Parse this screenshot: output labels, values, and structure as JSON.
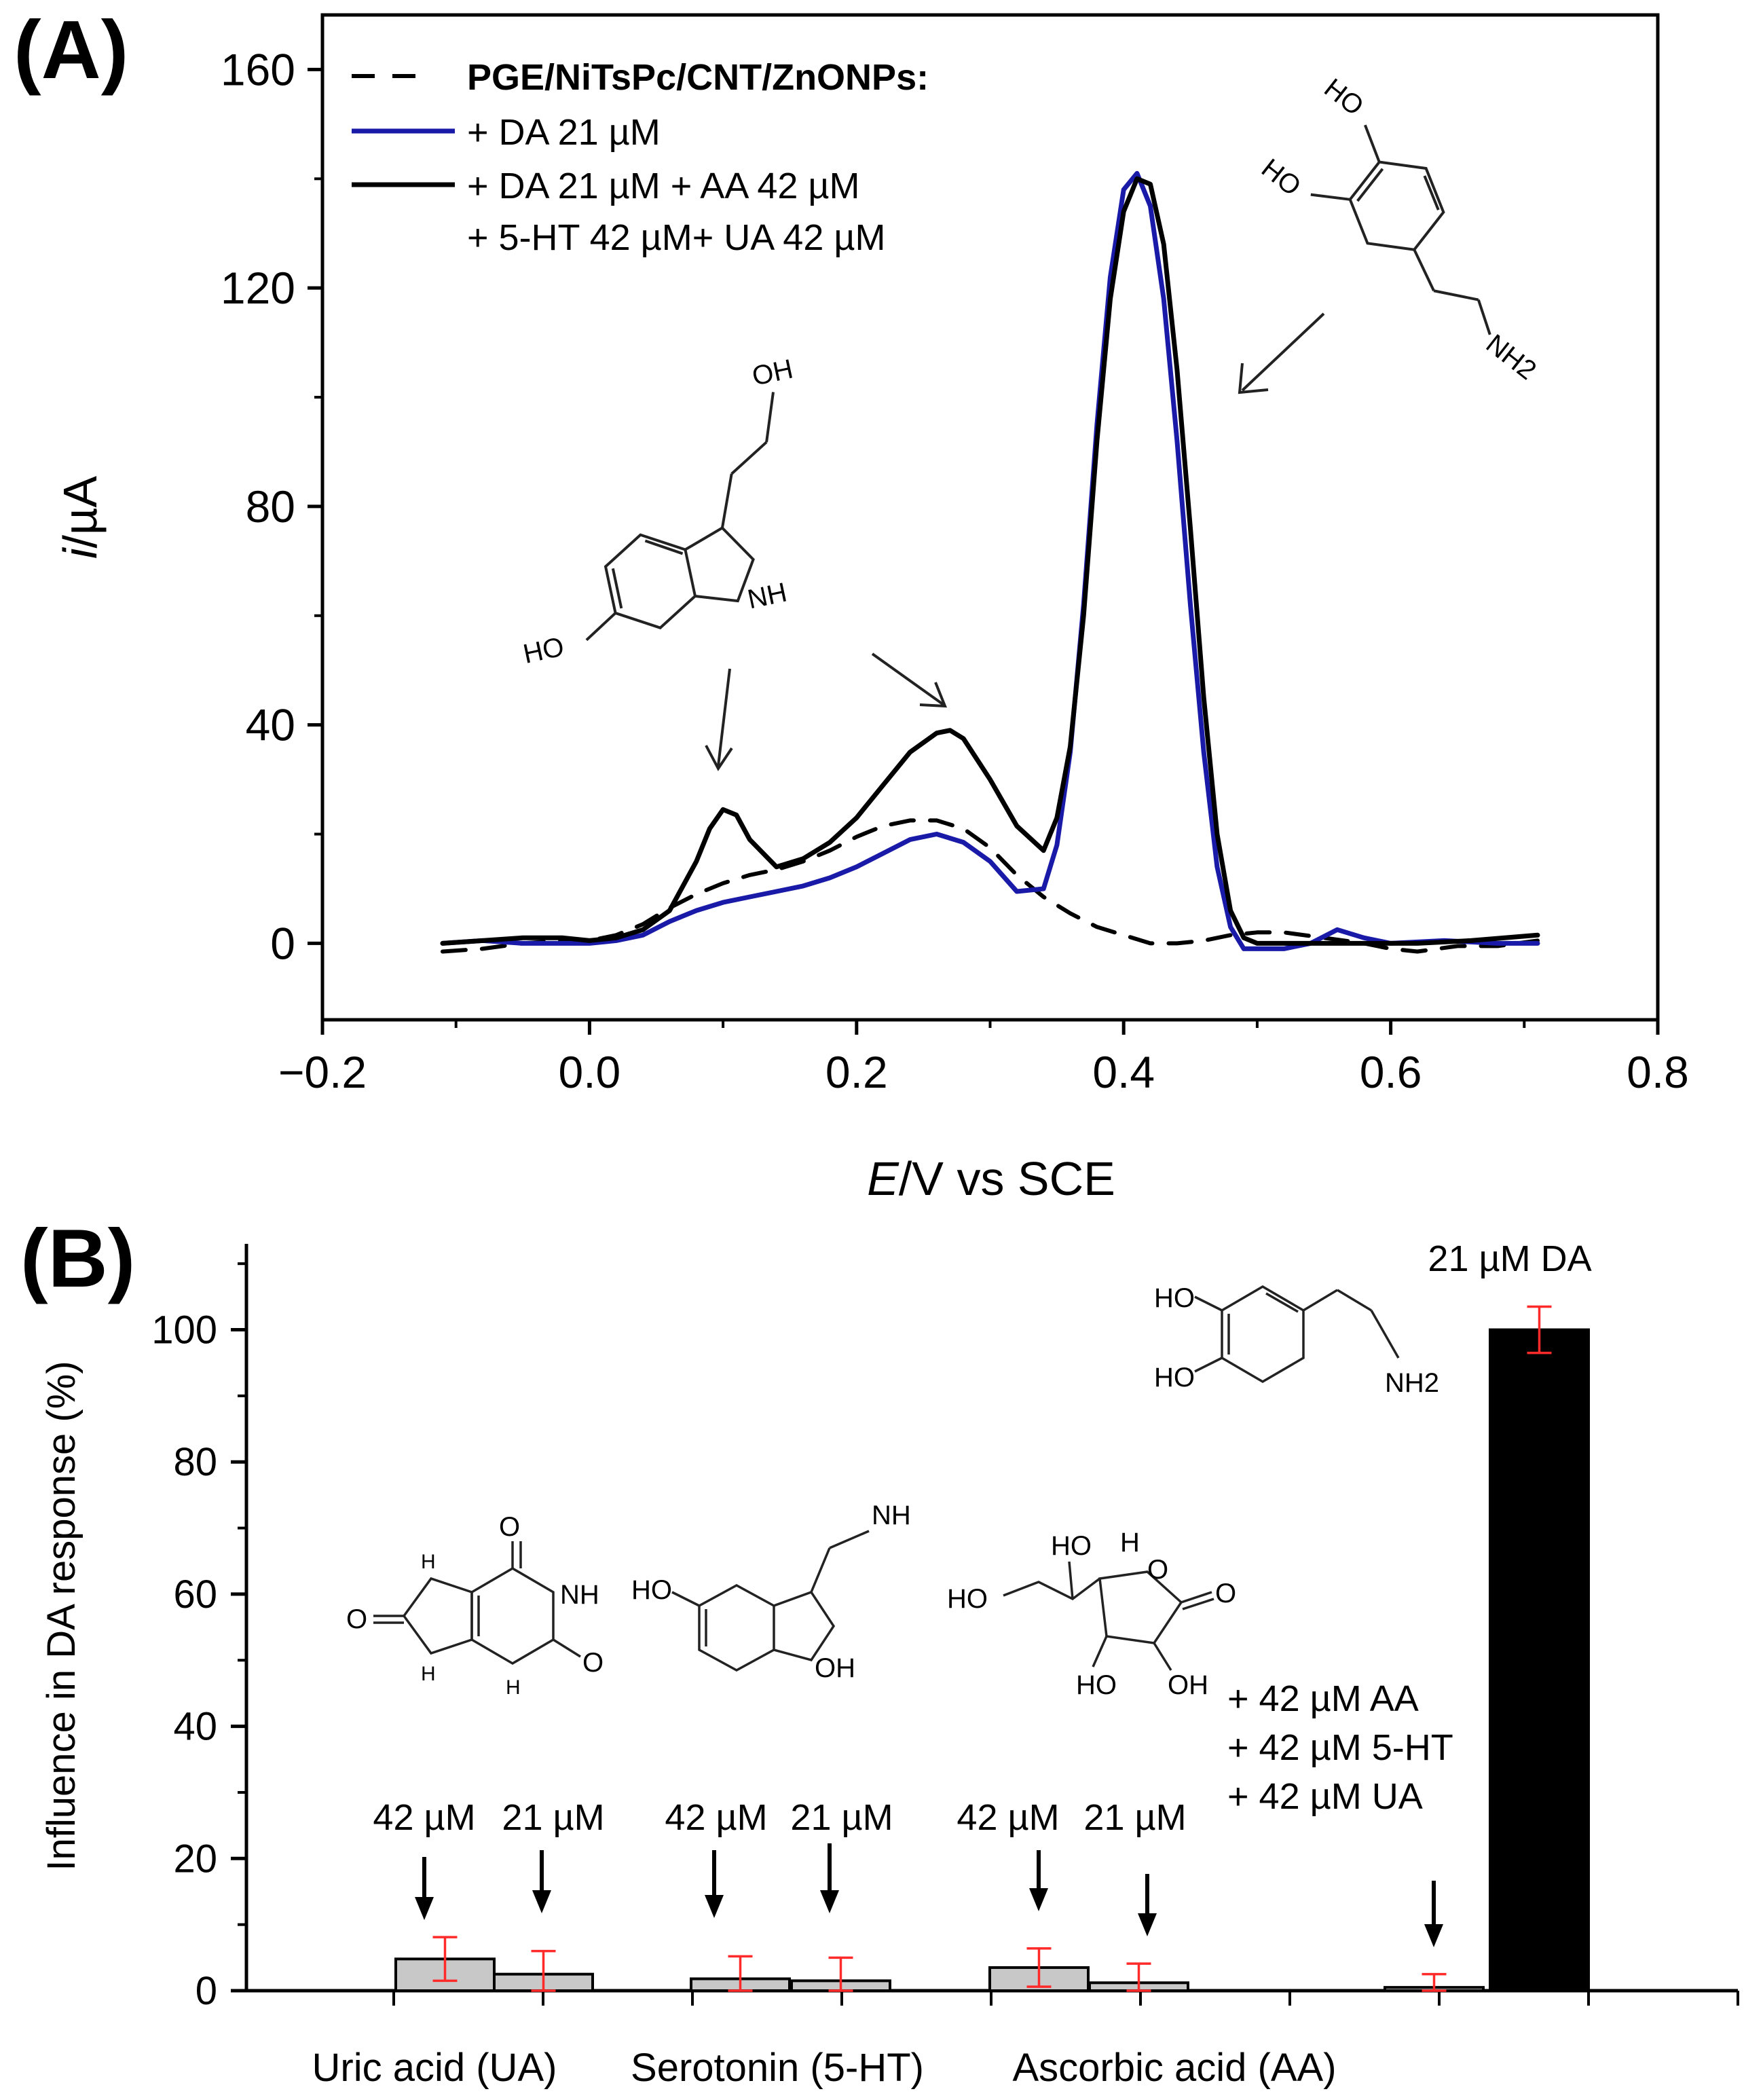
{
  "chart_data": [
    {
      "id": "A",
      "type": "line",
      "panel_label": "(A)",
      "xlabel_italic": "E",
      "xlabel_rest": "/V vs SCE",
      "ylabel_italic": "i",
      "ylabel_rest": "/µA",
      "xlim": [
        -0.2,
        0.8
      ],
      "ylim": [
        -14,
        170
      ],
      "xticks": [
        -0.2,
        0.0,
        0.2,
        0.4,
        0.6,
        0.8
      ],
      "xtick_labels": [
        "−0.2",
        "0.0",
        "0.2",
        "0.4",
        "0.6",
        "0.8"
      ],
      "yticks": [
        0,
        40,
        80,
        120,
        160
      ],
      "ytick_labels": [
        "0",
        "40",
        "80",
        "120",
        "160"
      ],
      "legend": {
        "title": "PGE/NiTsPc/CNT/ZnONPs:",
        "entries": [
          "+ DA 21 µM",
          "+ DA 21 µM + AA 42 µM",
          "+ 5-HT 42 µM+ UA 42 µM"
        ]
      },
      "series": [
        {
          "name": "PGE/NiTsPc/CNT/ZnONPs",
          "style": "dashed",
          "color": "#000000",
          "x": [
            -0.11,
            -0.08,
            -0.05,
            -0.02,
            0.0,
            0.02,
            0.04,
            0.06,
            0.08,
            0.1,
            0.12,
            0.14,
            0.16,
            0.18,
            0.2,
            0.22,
            0.24,
            0.26,
            0.28,
            0.3,
            0.32,
            0.34,
            0.36,
            0.38,
            0.4,
            0.42,
            0.44,
            0.46,
            0.48,
            0.5,
            0.52,
            0.55,
            0.58,
            0.6,
            0.62,
            0.65,
            0.68,
            0.71
          ],
          "y": [
            -1.5,
            -1,
            0,
            0.5,
            0.5,
            1.5,
            3.5,
            6.5,
            9,
            11,
            12.5,
            13.5,
            15,
            17,
            19.5,
            21.5,
            22.5,
            22.5,
            21,
            17.5,
            12.5,
            8.5,
            5.5,
            3,
            1.5,
            0,
            0,
            0.5,
            1.5,
            2,
            2,
            1,
            0,
            -1,
            -1.5,
            -0.5,
            -0.5,
            0.5
          ]
        },
        {
          "name": "+ DA 21 µM",
          "style": "solid",
          "color": "#1a1aa8",
          "x": [
            -0.11,
            -0.08,
            -0.05,
            -0.02,
            0.0,
            0.02,
            0.04,
            0.06,
            0.08,
            0.1,
            0.12,
            0.14,
            0.16,
            0.18,
            0.2,
            0.22,
            0.24,
            0.26,
            0.28,
            0.3,
            0.32,
            0.34,
            0.35,
            0.36,
            0.37,
            0.38,
            0.39,
            0.4,
            0.41,
            0.42,
            0.43,
            0.44,
            0.45,
            0.46,
            0.47,
            0.48,
            0.49,
            0.5,
            0.52,
            0.54,
            0.56,
            0.58,
            0.6,
            0.64,
            0.68,
            0.71
          ],
          "y": [
            0,
            0.5,
            0,
            0,
            0,
            0.5,
            1.5,
            4,
            6,
            7.5,
            8.5,
            9.5,
            10.5,
            12,
            14,
            16.5,
            19,
            20,
            18.5,
            15,
            9.5,
            10,
            18,
            35,
            62,
            95,
            122,
            138,
            141,
            135,
            118,
            92,
            62,
            35,
            14,
            3,
            -1,
            -1,
            -1,
            0,
            2.5,
            1,
            0,
            0.5,
            0,
            0
          ]
        },
        {
          "name": "+ DA 21 µM + AA 42 µM + 5-HT 42 µM+ UA 42 µM",
          "style": "solid",
          "color": "#000000",
          "x": [
            -0.11,
            -0.08,
            -0.05,
            -0.02,
            0.0,
            0.02,
            0.04,
            0.06,
            0.08,
            0.09,
            0.1,
            0.11,
            0.12,
            0.14,
            0.16,
            0.18,
            0.2,
            0.22,
            0.24,
            0.26,
            0.27,
            0.28,
            0.3,
            0.32,
            0.34,
            0.35,
            0.36,
            0.37,
            0.38,
            0.39,
            0.4,
            0.41,
            0.42,
            0.43,
            0.44,
            0.45,
            0.46,
            0.47,
            0.48,
            0.49,
            0.5,
            0.54,
            0.58,
            0.62,
            0.66,
            0.71
          ],
          "y": [
            0,
            0.5,
            1,
            1,
            0.5,
            1,
            2.5,
            6,
            15,
            21,
            24.5,
            23.5,
            19,
            14,
            15.5,
            18.5,
            23,
            29,
            35,
            38.5,
            39,
            37.5,
            30,
            21.5,
            17,
            23,
            36,
            60,
            92,
            118,
            134,
            140,
            139,
            128,
            105,
            76,
            45,
            20,
            6,
            1,
            0,
            0,
            0,
            0,
            0.5,
            1.5
          ]
        }
      ],
      "annotations": [
        "HO",
        "HO",
        "NH2",
        "OH",
        "HO",
        "NH"
      ]
    },
    {
      "id": "B",
      "type": "bar",
      "panel_label": "(B)",
      "ylabel": "Influence in DA response (%)",
      "ylim": [
        0,
        113
      ],
      "yticks": [
        0,
        20,
        40,
        60,
        80,
        100
      ],
      "ytick_labels": [
        "0",
        "20",
        "40",
        "60",
        "80",
        "100"
      ],
      "categories": [
        "Uric acid (UA)",
        "Serotonin (5-HT)",
        "Ascorbic acid (AA)"
      ],
      "bars": [
        {
          "group": "Uric acid (UA)",
          "conc": "42 µM",
          "value": 4.8,
          "err": 3.3,
          "color": "#c8c8c8"
        },
        {
          "group": "Uric acid (UA)",
          "conc": "21 µM",
          "value": 2.5,
          "err": 3.5,
          "color": "#c8c8c8"
        },
        {
          "group": "Serotonin (5-HT)",
          "conc": "42 µM",
          "value": 1.8,
          "err": 3.4,
          "color": "#c8c8c8"
        },
        {
          "group": "Serotonin (5-HT)",
          "conc": "21 µM",
          "value": 1.5,
          "err": 3.5,
          "color": "#c8c8c8"
        },
        {
          "group": "Ascorbic acid (AA)",
          "conc": "42 µM",
          "value": 3.5,
          "err": 2.9,
          "color": "#c8c8c8"
        },
        {
          "group": "Ascorbic acid (AA)",
          "conc": "21 µM",
          "value": 1.2,
          "err": 2.9,
          "color": "#c8c8c8"
        },
        {
          "group": "mixture",
          "conc": "",
          "value": 0.5,
          "err": 2.0,
          "color": "#c8c8c8"
        },
        {
          "group": "DA",
          "conc": "21 µM DA",
          "value": 100,
          "err": 3.5,
          "color": "#000000"
        }
      ],
      "mixture_label": [
        "+ 42 µM AA",
        "+ 42 µM 5-HT",
        "+ 42 µM UA"
      ],
      "da_label": "21 µM DA",
      "error_bar_color": "#ff2a2a",
      "annotations": [
        "HO",
        "HO",
        "NH2",
        "H",
        "H",
        "H",
        "NH",
        "O",
        "O",
        "O",
        "HO",
        "OH",
        "NH",
        "HO",
        "H",
        "O",
        "O",
        "HO",
        "HO",
        "OH"
      ]
    }
  ]
}
